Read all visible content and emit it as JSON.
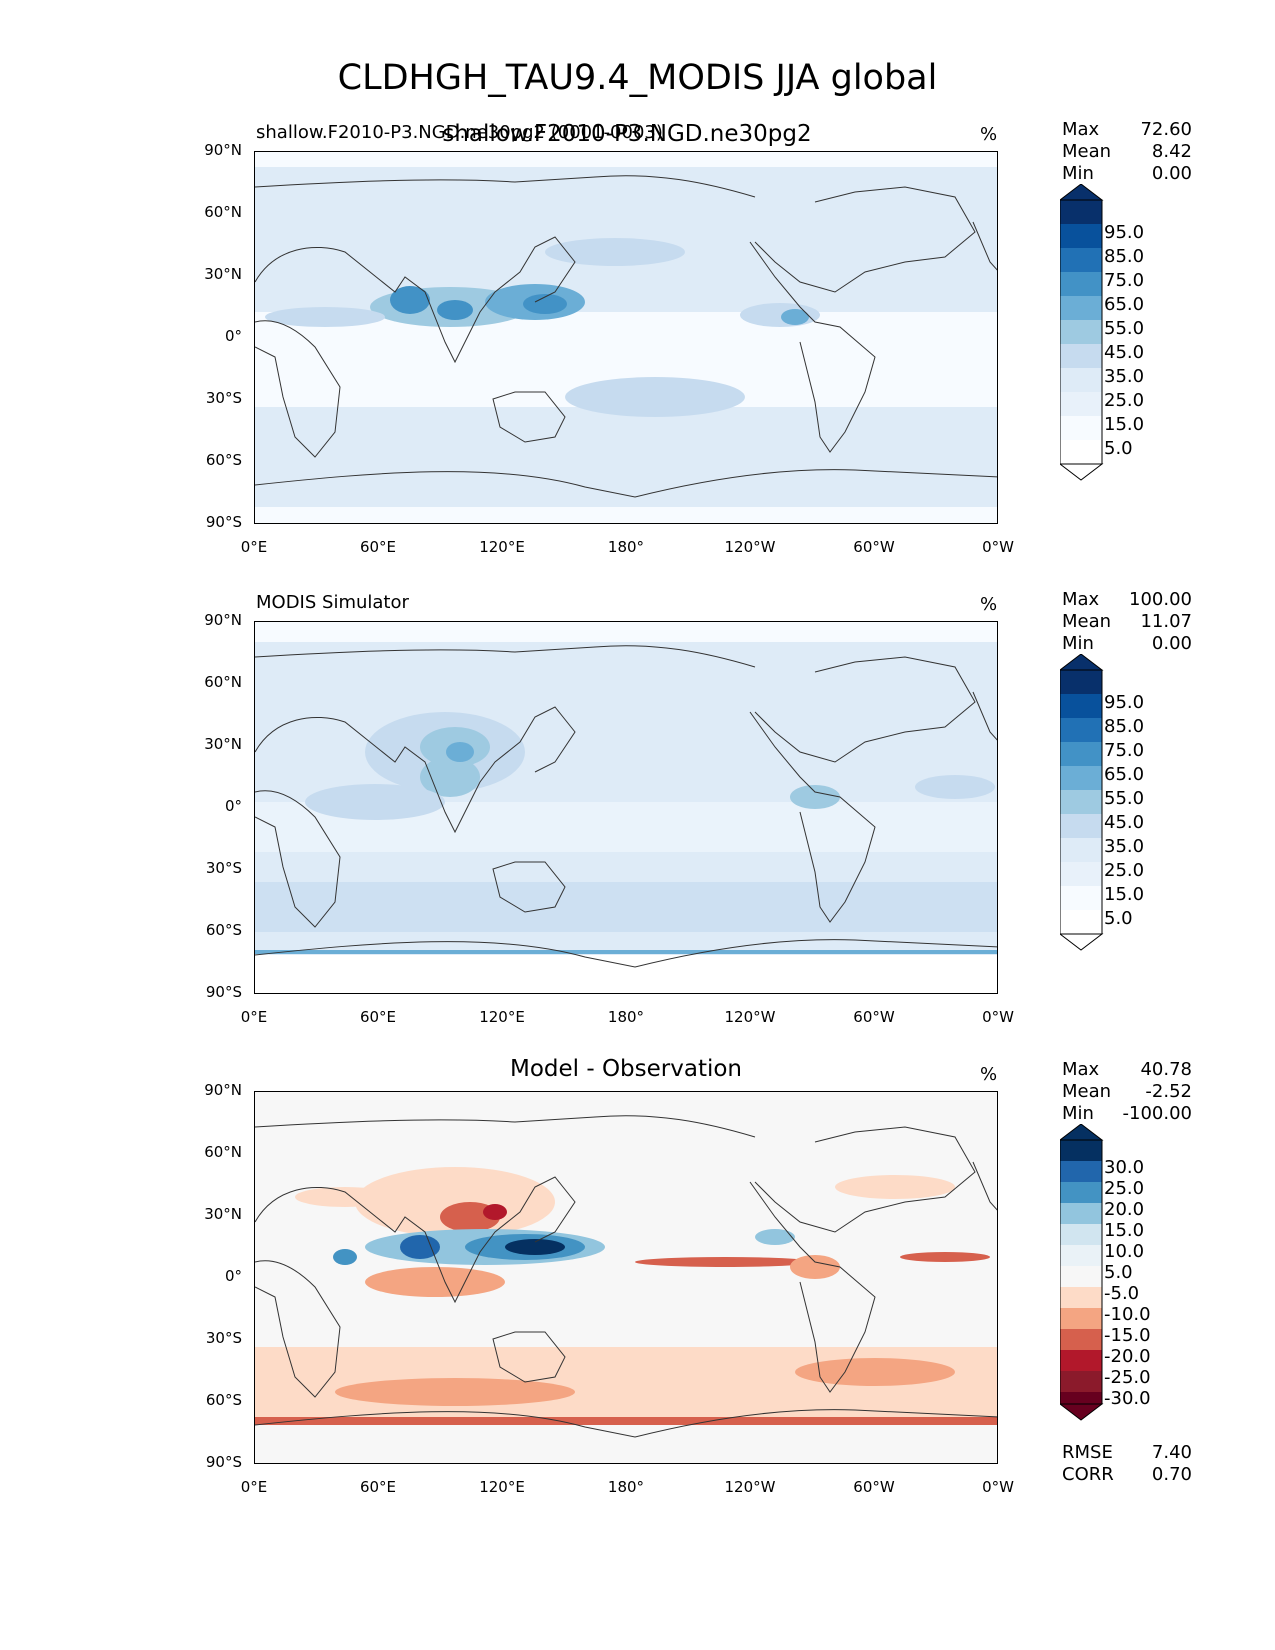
{
  "title": "CLDHGH_TAU9.4_MODIS JJA global",
  "axes": {
    "lat_ticks": [
      "90°N",
      "60°N",
      "30°N",
      "0°",
      "30°S",
      "60°S",
      "90°S"
    ],
    "lon_ticks": [
      "0°E",
      "60°E",
      "120°E",
      "180°",
      "120°W",
      "60°W",
      "0°W"
    ]
  },
  "panels": [
    {
      "left_title": "shallow.F2010-P3.NGD.ne30pg2 (0001-0003)",
      "center_title": "shallow.F2010-P3.NGD.ne30pg2",
      "unit": "%",
      "stats": {
        "max_label": "Max",
        "max": "72.60",
        "mean_label": "Mean",
        "mean": "8.42",
        "min_label": "Min",
        "min": "0.00"
      },
      "colorbar_levels": [
        "95.0",
        "85.0",
        "75.0",
        "65.0",
        "55.0",
        "45.0",
        "35.0",
        "25.0",
        "15.0",
        "5.0"
      ]
    },
    {
      "left_title": "MODIS Simulator",
      "center_title": "",
      "unit": "%",
      "stats": {
        "max_label": "Max",
        "max": "100.00",
        "mean_label": "Mean",
        "mean": "11.07",
        "min_label": "Min",
        "min": "0.00"
      },
      "colorbar_levels": [
        "95.0",
        "85.0",
        "75.0",
        "65.0",
        "55.0",
        "45.0",
        "35.0",
        "25.0",
        "15.0",
        "5.0"
      ]
    },
    {
      "left_title": "",
      "center_title": "Model - Observation",
      "unit": "%",
      "stats": {
        "max_label": "Max",
        "max": "40.78",
        "mean_label": "Mean",
        "mean": "-2.52",
        "min_label": "Min",
        "min": "-100.00"
      },
      "colorbar_levels": [
        "30.0",
        "25.0",
        "20.0",
        "15.0",
        "10.0",
        "5.0",
        "-5.0",
        "-10.0",
        "-15.0",
        "-20.0",
        "-25.0",
        "-30.0"
      ]
    }
  ],
  "diff_stats": {
    "rmse_label": "RMSE",
    "rmse": "7.40",
    "corr_label": "CORR",
    "corr": "0.70"
  },
  "colors": {
    "blues": [
      "#f7fbff",
      "#deebf7",
      "#c6dbef",
      "#9ecae1",
      "#6baed6",
      "#4292c6",
      "#2171b5",
      "#08519c",
      "#08306b"
    ],
    "rdbu": [
      "#67001f",
      "#b2182b",
      "#d6604d",
      "#f4a582",
      "#fddbc7",
      "#f7f7f7",
      "#d1e5f0",
      "#92c5de",
      "#4393c3",
      "#2166ac",
      "#053061"
    ],
    "coast": "#333333"
  }
}
